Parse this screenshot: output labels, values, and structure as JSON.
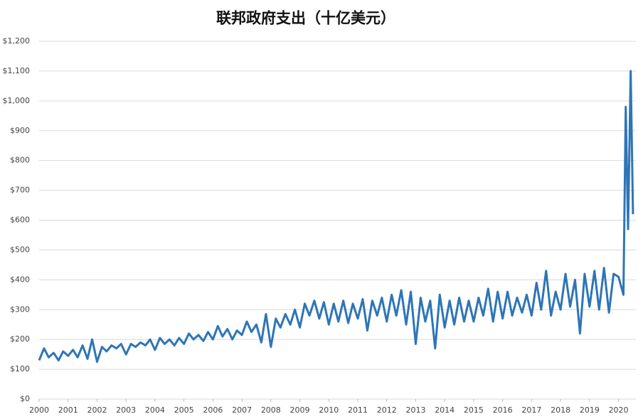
{
  "chart_data": {
    "type": "line",
    "title": "联邦政府支出（十亿美元）",
    "color": "#2e75b6",
    "grid": true,
    "xlim": [
      2000,
      2020.6
    ],
    "ylim": [
      0,
      1200
    ],
    "xticks": [
      2000,
      2001,
      2002,
      2003,
      2004,
      2005,
      2006,
      2007,
      2008,
      2009,
      2010,
      2011,
      2012,
      2013,
      2014,
      2015,
      2016,
      2017,
      2018,
      2019,
      2020
    ],
    "yticks": [
      {
        "value": 0,
        "label": "$0"
      },
      {
        "value": 100,
        "label": "$100"
      },
      {
        "value": 200,
        "label": "$200"
      },
      {
        "value": 300,
        "label": "$300"
      },
      {
        "value": 400,
        "label": "$400"
      },
      {
        "value": 500,
        "label": "$500"
      },
      {
        "value": 600,
        "label": "$600"
      },
      {
        "value": 700,
        "label": "$700"
      },
      {
        "value": 800,
        "label": "$800"
      },
      {
        "value": 900,
        "label": "$900"
      },
      {
        "value": 1000,
        "label": "$1,000"
      },
      {
        "value": 1100,
        "label": "$1,100"
      },
      {
        "value": 1200,
        "label": "$1,200"
      }
    ],
    "x": [
      2000,
      2000.17,
      2000.33,
      2000.5,
      2000.67,
      2000.83,
      2001,
      2001.17,
      2001.33,
      2001.5,
      2001.67,
      2001.83,
      2002,
      2002.17,
      2002.33,
      2002.5,
      2002.67,
      2002.83,
      2003,
      2003.17,
      2003.33,
      2003.5,
      2003.67,
      2003.83,
      2004,
      2004.17,
      2004.33,
      2004.5,
      2004.67,
      2004.83,
      2005,
      2005.17,
      2005.33,
      2005.5,
      2005.67,
      2005.83,
      2006,
      2006.17,
      2006.33,
      2006.5,
      2006.67,
      2006.83,
      2007,
      2007.17,
      2007.33,
      2007.5,
      2007.67,
      2007.83,
      2008,
      2008.17,
      2008.33,
      2008.5,
      2008.67,
      2008.83,
      2009,
      2009.17,
      2009.33,
      2009.5,
      2009.67,
      2009.83,
      2010,
      2010.17,
      2010.33,
      2010.5,
      2010.67,
      2010.83,
      2011,
      2011.17,
      2011.33,
      2011.5,
      2011.67,
      2011.83,
      2012,
      2012.17,
      2012.33,
      2012.5,
      2012.67,
      2012.83,
      2013,
      2013.17,
      2013.33,
      2013.5,
      2013.67,
      2013.83,
      2014,
      2014.17,
      2014.33,
      2014.5,
      2014.67,
      2014.83,
      2015,
      2015.17,
      2015.33,
      2015.5,
      2015.67,
      2015.83,
      2016,
      2016.17,
      2016.33,
      2016.5,
      2016.67,
      2016.83,
      2017,
      2017.17,
      2017.33,
      2017.5,
      2017.67,
      2017.83,
      2018,
      2018.17,
      2018.33,
      2018.5,
      2018.67,
      2018.83,
      2019,
      2019.17,
      2019.33,
      2019.5,
      2019.67,
      2019.83,
      2020,
      2020.17,
      2020.25,
      2020.33,
      2020.42,
      2020.5
    ],
    "values": [
      130,
      170,
      140,
      155,
      130,
      160,
      145,
      165,
      140,
      180,
      135,
      200,
      125,
      175,
      160,
      180,
      170,
      185,
      150,
      185,
      175,
      190,
      180,
      200,
      165,
      205,
      185,
      200,
      180,
      205,
      185,
      220,
      200,
      215,
      195,
      225,
      200,
      245,
      210,
      235,
      200,
      230,
      215,
      260,
      225,
      250,
      190,
      285,
      175,
      270,
      240,
      285,
      250,
      300,
      240,
      320,
      280,
      330,
      270,
      325,
      250,
      320,
      260,
      330,
      255,
      320,
      270,
      335,
      230,
      330,
      280,
      340,
      260,
      350,
      280,
      365,
      250,
      360,
      185,
      340,
      260,
      330,
      170,
      350,
      240,
      330,
      250,
      340,
      260,
      330,
      260,
      340,
      280,
      370,
      260,
      360,
      270,
      360,
      280,
      340,
      290,
      350,
      280,
      390,
      300,
      430,
      280,
      360,
      300,
      420,
      310,
      400,
      220,
      420,
      310,
      430,
      300,
      440,
      290,
      420,
      410,
      350,
      980,
      570,
      1100,
      620
    ]
  }
}
